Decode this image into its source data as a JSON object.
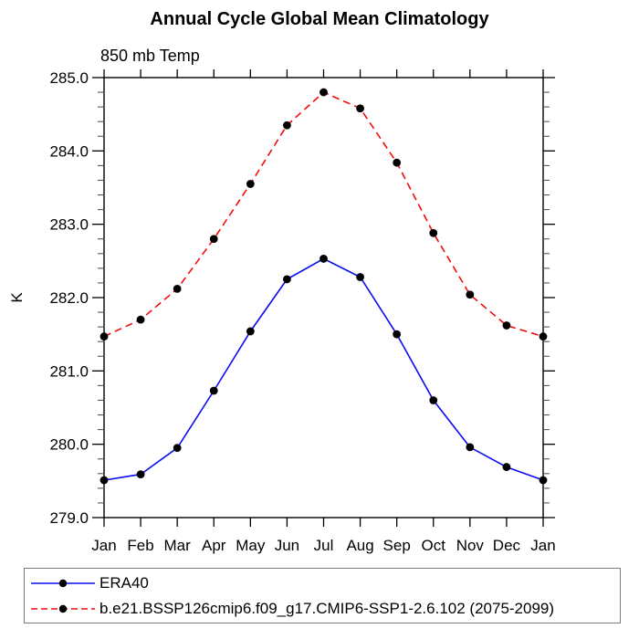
{
  "chart_data": {
    "type": "line",
    "title": "Annual Cycle Global Mean Climatology",
    "subtitle": "850 mb Temp",
    "xlabel": "",
    "ylabel": "K",
    "categories": [
      "Jan",
      "Feb",
      "Mar",
      "Apr",
      "May",
      "Jun",
      "Jul",
      "Aug",
      "Sep",
      "Oct",
      "Nov",
      "Dec",
      "Jan"
    ],
    "ylim": [
      279.0,
      285.0
    ],
    "ytick_step": 1.0,
    "yminor_step": 0.2,
    "ytick_labels": [
      "279.0",
      "280.0",
      "281.0",
      "282.0",
      "283.0",
      "284.0",
      "285.0"
    ],
    "grid": false,
    "legend_position": "bottom-left-box",
    "axis_color": "#000000",
    "marker": "filled-circle",
    "marker_color": "#000000",
    "series": [
      {
        "name": "ERA40",
        "color": "#0b0bef",
        "style": "solid",
        "values": [
          279.51,
          279.59,
          279.95,
          280.73,
          281.54,
          282.25,
          282.53,
          282.28,
          281.5,
          280.6,
          279.96,
          279.69,
          279.51
        ]
      },
      {
        "name": "b.e21.BSSP126cmip6.f09_g17.CMIP6-SSP1-2.6.102 (2075-2099)",
        "color": "#f30b0b",
        "style": "dashed",
        "values": [
          281.47,
          281.7,
          282.12,
          282.8,
          283.55,
          284.35,
          284.8,
          284.58,
          283.84,
          282.88,
          282.04,
          281.62,
          281.47
        ]
      }
    ]
  }
}
